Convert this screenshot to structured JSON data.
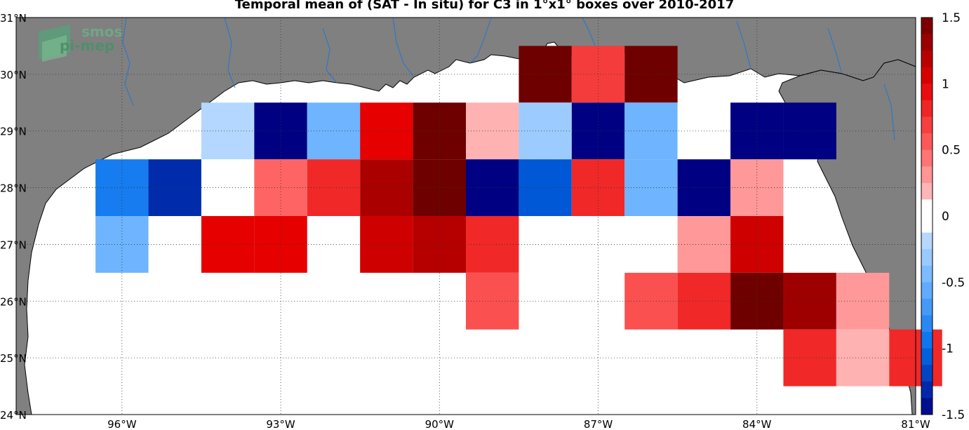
{
  "title": "Temporal mean of (SAT - In situ) for C3 in 1°x1° boxes over 2010-2017",
  "logo": {
    "line1": "smos",
    "line2": "pi-mep"
  },
  "lat_labels": [
    "24°N",
    "25°N",
    "26°N",
    "27°N",
    "28°N",
    "29°N",
    "30°N",
    "31°N"
  ],
  "lon_labels": [
    "96°W",
    "93°W",
    "90°W",
    "87°W",
    "84°W",
    "81°W"
  ],
  "lat_values": [
    24,
    25,
    26,
    27,
    28,
    29,
    30,
    31
  ],
  "lon_values": [
    -96,
    -93,
    -90,
    -87,
    -84,
    -81
  ],
  "extent": {
    "lon": [
      -98,
      -81
    ],
    "lat": [
      24,
      31
    ]
  },
  "colorbar": {
    "min": -1.5,
    "max": 1.5,
    "steps": 24,
    "tick_labels": [
      "1.5",
      "1",
      "0.5",
      "0",
      "-0.5",
      "-1",
      "-1.5"
    ],
    "tick_values": [
      1.5,
      1,
      0.5,
      0,
      -0.5,
      -1,
      -1.5
    ]
  },
  "colors": {
    "land": "#808080",
    "ocean": "#ffffff",
    "rivers": "#1f77d0"
  },
  "chart_data": {
    "type": "heatmap",
    "title": "Temporal mean of (SAT - In situ) for C3 in 1°x1° boxes over 2010-2017",
    "units_cell": "1°x1°",
    "value_range": [
      -1.5,
      1.5
    ],
    "cells": [
      {
        "lon0": -88.5,
        "lat0": 29.5,
        "value": 1.5
      },
      {
        "lon0": -87.5,
        "lat0": 29.5,
        "value": 0.7
      },
      {
        "lon0": -86.5,
        "lat0": 29.5,
        "value": 1.5
      },
      {
        "lon0": -94.5,
        "lat0": 28.5,
        "value": -0.2
      },
      {
        "lon0": -93.5,
        "lat0": 28.5,
        "value": -1.5
      },
      {
        "lon0": -92.5,
        "lat0": 28.5,
        "value": -0.5
      },
      {
        "lon0": -91.5,
        "lat0": 28.5,
        "value": 1.0
      },
      {
        "lon0": -90.5,
        "lat0": 28.5,
        "value": 1.5
      },
      {
        "lon0": -89.5,
        "lat0": 28.5,
        "value": 0.2
      },
      {
        "lon0": -88.5,
        "lat0": 28.5,
        "value": -0.3
      },
      {
        "lon0": -87.5,
        "lat0": 28.5,
        "value": -1.5
      },
      {
        "lon0": -86.5,
        "lat0": 28.5,
        "value": -0.5
      },
      {
        "lon0": -85.5,
        "lat0": 28.5,
        "value": 0.0
      },
      {
        "lon0": -84.5,
        "lat0": 28.5,
        "value": -1.5
      },
      {
        "lon0": -83.5,
        "lat0": 28.5,
        "value": -1.5
      },
      {
        "lon0": -96.5,
        "lat0": 27.5,
        "value": -0.9
      },
      {
        "lon0": -95.5,
        "lat0": 27.5,
        "value": -1.3
      },
      {
        "lon0": -94.5,
        "lat0": 27.5,
        "value": 0.0
      },
      {
        "lon0": -93.5,
        "lat0": 27.5,
        "value": 0.5
      },
      {
        "lon0": -92.5,
        "lat0": 27.5,
        "value": 0.8
      },
      {
        "lon0": -91.5,
        "lat0": 27.5,
        "value": 1.25
      },
      {
        "lon0": -90.5,
        "lat0": 27.5,
        "value": 1.5
      },
      {
        "lon0": -89.5,
        "lat0": 27.5,
        "value": -1.5
      },
      {
        "lon0": -88.5,
        "lat0": 27.5,
        "value": -1.1
      },
      {
        "lon0": -87.5,
        "lat0": 27.5,
        "value": 0.8
      },
      {
        "lon0": -86.5,
        "lat0": 27.5,
        "value": -0.5
      },
      {
        "lon0": -85.5,
        "lat0": 27.5,
        "value": -1.5
      },
      {
        "lon0": -84.5,
        "lat0": 27.5,
        "value": 0.3
      },
      {
        "lon0": -96.5,
        "lat0": 26.5,
        "value": -0.5
      },
      {
        "lon0": -94.5,
        "lat0": 26.5,
        "value": 1.0
      },
      {
        "lon0": -93.5,
        "lat0": 26.5,
        "value": 1.0
      },
      {
        "lon0": -91.5,
        "lat0": 26.5,
        "value": 1.1
      },
      {
        "lon0": -90.5,
        "lat0": 26.5,
        "value": 1.2
      },
      {
        "lon0": -89.5,
        "lat0": 26.5,
        "value": 0.8
      },
      {
        "lon0": -85.5,
        "lat0": 26.5,
        "value": 0.3
      },
      {
        "lon0": -84.5,
        "lat0": 26.5,
        "value": 1.1
      },
      {
        "lon0": -89.5,
        "lat0": 25.5,
        "value": 0.6
      },
      {
        "lon0": -86.5,
        "lat0": 25.5,
        "value": 0.6
      },
      {
        "lon0": -85.5,
        "lat0": 25.5,
        "value": 0.8
      },
      {
        "lon0": -84.5,
        "lat0": 25.5,
        "value": 1.5
      },
      {
        "lon0": -83.5,
        "lat0": 25.5,
        "value": 1.3
      },
      {
        "lon0": -82.5,
        "lat0": 25.5,
        "value": 0.3
      },
      {
        "lon0": -83.5,
        "lat0": 24.5,
        "value": 0.8
      },
      {
        "lon0": -82.5,
        "lat0": 24.5,
        "value": 0.2
      },
      {
        "lon0": -81.5,
        "lat0": 24.5,
        "value": 0.8
      }
    ]
  }
}
